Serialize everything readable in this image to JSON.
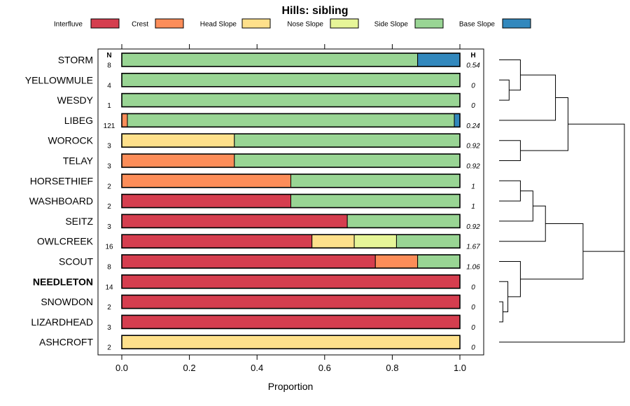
{
  "chart_data": {
    "type": "bar",
    "orientation": "horizontal-stacked",
    "title": "Hills: sibling",
    "xlabel": "Proportion",
    "ylabel": "",
    "xlim": [
      0,
      1
    ],
    "xticks": [
      "0.0",
      "0.2",
      "0.4",
      "0.6",
      "0.8",
      "1.0"
    ],
    "xtick_values": [
      0,
      0.2,
      0.4,
      0.6,
      0.8,
      1.0
    ],
    "n_header": "N",
    "h_header": "H",
    "legend": [
      {
        "name": "Interfluve",
        "color": "#d53e4f"
      },
      {
        "name": "Crest",
        "color": "#fc8d59"
      },
      {
        "name": "Head Slope",
        "color": "#fee08b"
      },
      {
        "name": "Nose Slope",
        "color": "#e6f598"
      },
      {
        "name": "Side Slope",
        "color": "#99d594"
      },
      {
        "name": "Base Slope",
        "color": "#3288bd"
      }
    ],
    "categories": [
      "STORM",
      "YELLOWMULE",
      "WESDY",
      "LIBEG",
      "WOROCK",
      "TELAY",
      "HORSETHIEF",
      "WASHBOARD",
      "SEITZ",
      "OWLCREEK",
      "SCOUT",
      "NEEDLETON",
      "SNOWDON",
      "LIZARDHEAD",
      "ASHCROFT"
    ],
    "highlight": "NEEDLETON",
    "n": [
      "8",
      "4",
      "1",
      "121",
      "3",
      "3",
      "2",
      "2",
      "3",
      "16",
      "8",
      "14",
      "2",
      "3",
      "2"
    ],
    "h": [
      "0.54",
      "0",
      "0",
      "0.24",
      "0.92",
      "0.92",
      "1",
      "1",
      "0.92",
      "1.67",
      "1.06",
      "0",
      "0",
      "0",
      "0"
    ],
    "series": [
      {
        "name": "Interfluve",
        "values": [
          0,
          0,
          0,
          0,
          0,
          0,
          0,
          0.5,
          0.667,
          0.5625,
          0.75,
          1,
          1,
          1,
          0
        ]
      },
      {
        "name": "Crest",
        "values": [
          0,
          0,
          0,
          0.0165,
          0,
          0.333,
          0.5,
          0,
          0,
          0,
          0.125,
          0,
          0,
          0,
          0
        ]
      },
      {
        "name": "Head Slope",
        "values": [
          0,
          0,
          0,
          0,
          0.333,
          0,
          0,
          0,
          0,
          0.125,
          0,
          0,
          0,
          0,
          1
        ]
      },
      {
        "name": "Nose Slope",
        "values": [
          0,
          0,
          0,
          0,
          0,
          0,
          0,
          0,
          0,
          0.125,
          0,
          0,
          0,
          0,
          0
        ]
      },
      {
        "name": "Side Slope",
        "values": [
          0.875,
          1,
          1,
          0.967,
          0.667,
          0.667,
          0.5,
          0.5,
          0.333,
          0.1875,
          0.125,
          0,
          0,
          0,
          0
        ]
      },
      {
        "name": "Base Slope",
        "values": [
          0.125,
          0,
          0,
          0.0165,
          0,
          0,
          0,
          0,
          0,
          0,
          0,
          0,
          0,
          0,
          0
        ]
      }
    ],
    "dendrogram": [
      {
        "a": 1,
        "b": 2,
        "h": 0.08
      },
      {
        "a": 0,
        "b": "L0",
        "h": 0.17
      },
      {
        "a": 4,
        "b": 5,
        "h": 0.17
      },
      {
        "a": 3,
        "b": "L1",
        "h": 0.45
      },
      {
        "a": "L3",
        "b": "L2",
        "h": 0.55
      },
      {
        "a": 12,
        "b": 13,
        "h": 0.03
      },
      {
        "a": 11,
        "b": "L5",
        "h": 0.07
      },
      {
        "a": 10,
        "b": "L6",
        "h": 0.17
      },
      {
        "a": 6,
        "b": 7,
        "h": 0.17
      },
      {
        "a": "L8",
        "b": 8,
        "h": 0.27
      },
      {
        "a": "L9",
        "b": 9,
        "h": 0.37
      },
      {
        "a": "L10",
        "b": "L7",
        "h": 0.67
      },
      {
        "a": "L4",
        "b": "L11",
        "h": 1.0
      },
      {
        "a": "L12",
        "b": 14,
        "h": 1.0
      }
    ]
  }
}
